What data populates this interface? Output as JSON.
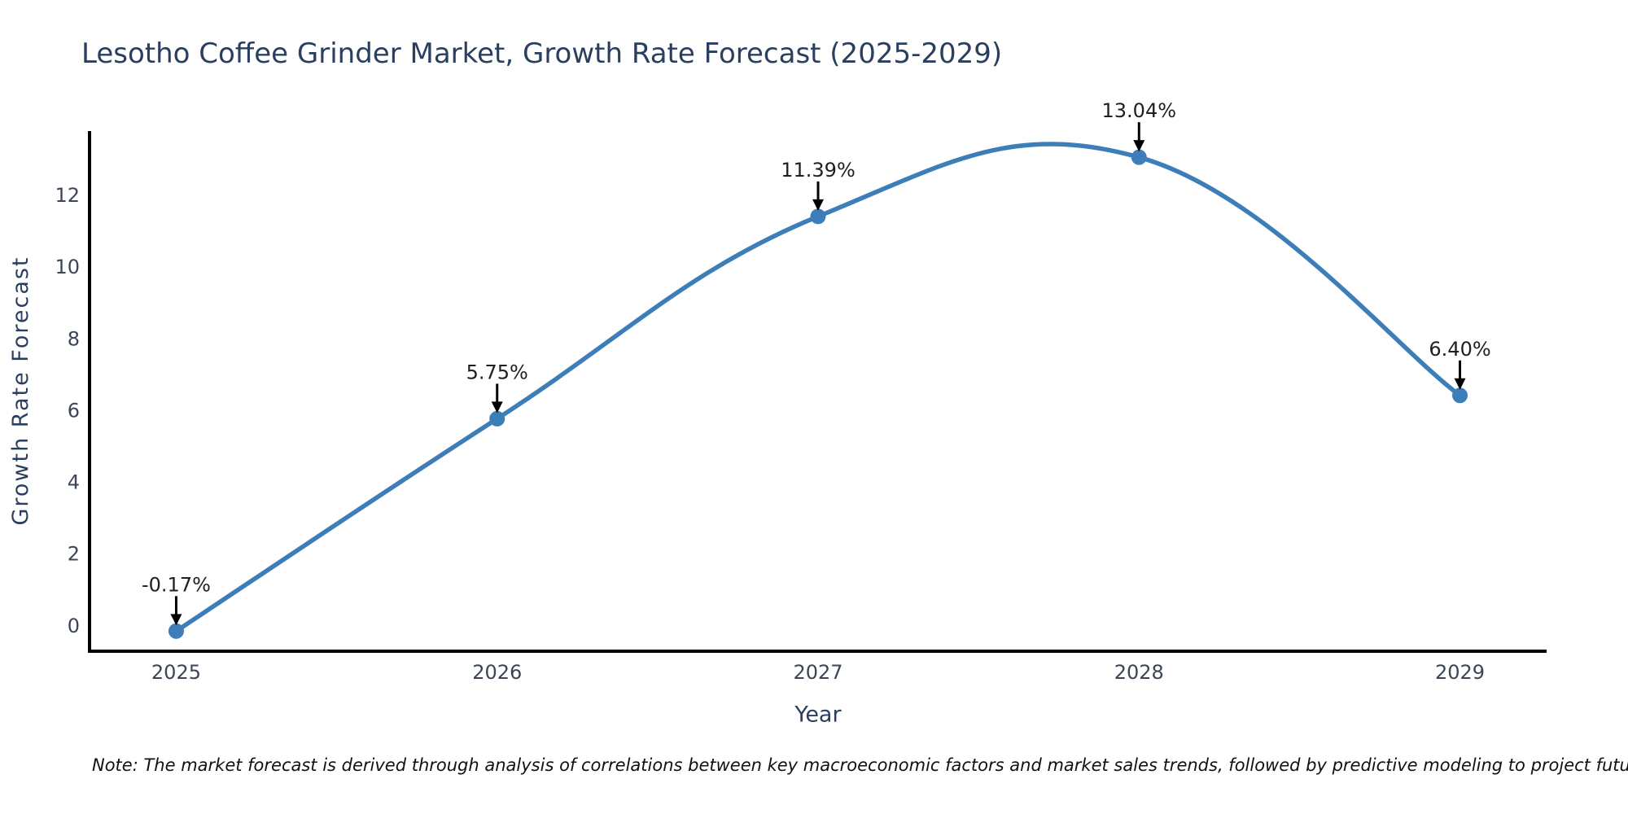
{
  "page": {
    "background_color": "#ffffff"
  },
  "chart_data": {
    "type": "line",
    "title": "Lesotho Coffee Grinder Market, Growth Rate Forecast (2025-2029)",
    "xlabel": "Year",
    "ylabel": "Growth Rate Forecast",
    "series": [
      {
        "name": "Growth Rate Forecast",
        "x": [
          2025,
          2026,
          2027,
          2028,
          2029
        ],
        "values": [
          -0.17,
          5.75,
          11.39,
          13.04,
          6.4
        ],
        "point_labels": [
          "-0.17%",
          "5.75%",
          "11.39%",
          "13.04%",
          "6.40%"
        ]
      }
    ],
    "line_shape": "spline",
    "markers": true,
    "grid": false,
    "legend_position": "none",
    "xlim": [
      2024.73,
      2029.27
    ],
    "ylim": [
      -0.73,
      13.77
    ],
    "xticks": [
      "2025",
      "2026",
      "2027",
      "2028",
      "2029"
    ],
    "xtick_values": [
      2025,
      2026,
      2027,
      2028,
      2029
    ],
    "yticks": [
      "0",
      "2",
      "4",
      "6",
      "8",
      "10",
      "12"
    ],
    "ytick_values": [
      0,
      2,
      4,
      6,
      8,
      10,
      12
    ],
    "line_color": "#3d7eb8",
    "marker_color": "#3d7eb8",
    "axis_line_color": "#000000",
    "title_color": "#2a3f5f",
    "axis_title_color": "#2a3f5f",
    "tick_label_color": "#3b4556",
    "annotation_text_color": "#1f1f1f",
    "annotation_arrow_color": "#000000",
    "note": "Note: The market forecast is derived through analysis of correlations between key macroeconomic factors and market sales trends, followed by predictive modeling to project future sales"
  }
}
